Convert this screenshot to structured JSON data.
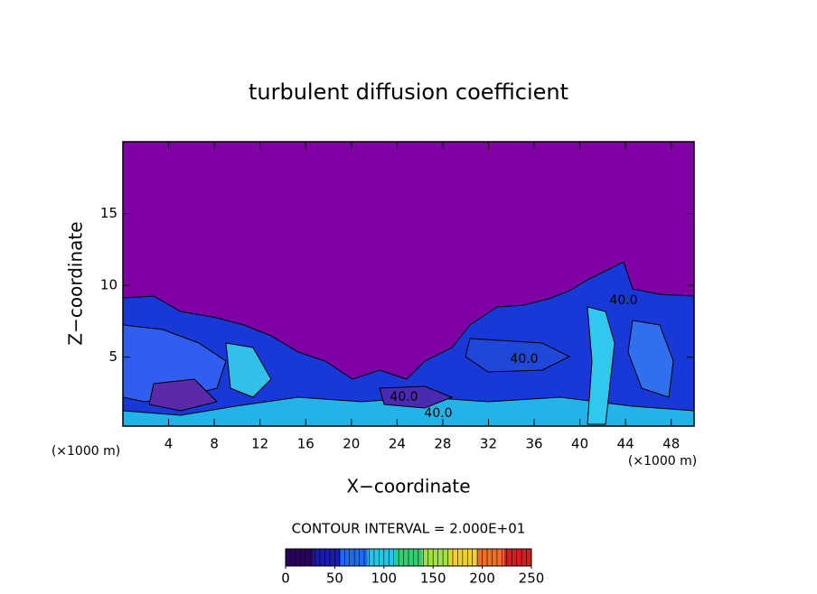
{
  "chart_data": {
    "type": "contour",
    "title": "turbulent diffusion coefficient",
    "xlabel": "X−coordinate",
    "ylabel": "Z−coordinate",
    "unit_labels": [
      "(×1000 m)",
      "(×1000 m)"
    ],
    "xlim": [
      0,
      50
    ],
    "xticks": [
      4,
      8,
      12,
      16,
      20,
      24,
      28,
      32,
      36,
      40,
      44,
      48
    ],
    "ylim": [
      0.2,
      20
    ],
    "yticks": [
      5,
      10,
      15
    ],
    "contour_labels": [
      "40.0",
      "40.0",
      "40.0",
      "40.0"
    ],
    "contour_interval_text": "CONTOUR INTERVAL = 2.000E+01",
    "colorbar": {
      "lim": [
        0,
        250
      ],
      "ticks": [
        0,
        50,
        100,
        150,
        200,
        250
      ],
      "colors": [
        "#2a0060",
        "#1a1ab0",
        "#1d6cf0",
        "#20c8e8",
        "#30d070",
        "#a0e040",
        "#f0d030",
        "#f07020",
        "#d02020"
      ]
    },
    "background_color": "#7f00a5"
  }
}
